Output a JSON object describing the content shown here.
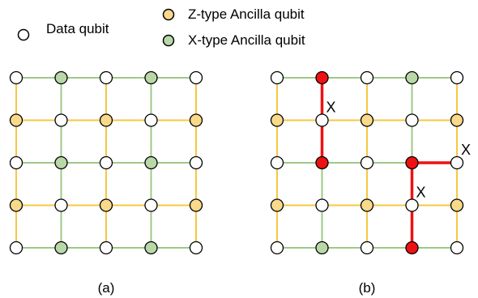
{
  "legend": {
    "data_label": "Data qubit",
    "z_label": "Z-type Ancilla qubit",
    "x_label": "X-type Ancilla qubit"
  },
  "colors": {
    "data_fill": "#ffffff",
    "z_fill": "#f9d98a",
    "x_fill": "#b8d8a8",
    "z_edge": "#f5c842",
    "x_edge": "#9cc987",
    "error": "#ee1111",
    "outline": "#000000"
  },
  "panels": [
    {
      "caption": "(a)",
      "grid": [
        [
          "D",
          "X",
          "D",
          "X",
          "D"
        ],
        [
          "Z",
          "D",
          "Z",
          "D",
          "Z"
        ],
        [
          "D",
          "X",
          "D",
          "X",
          "D"
        ],
        [
          "Z",
          "D",
          "Z",
          "D",
          "Z"
        ],
        [
          "D",
          "X",
          "D",
          "X",
          "D"
        ]
      ],
      "error_nodes": [],
      "error_edges": [],
      "error_marks": []
    },
    {
      "caption": "(b)",
      "grid": [
        [
          "D",
          "X",
          "D",
          "X",
          "D"
        ],
        [
          "Z",
          "D",
          "Z",
          "D",
          "Z"
        ],
        [
          "D",
          "X",
          "D",
          "X",
          "D"
        ],
        [
          "Z",
          "D",
          "Z",
          "D",
          "Z"
        ],
        [
          "D",
          "X",
          "D",
          "X",
          "D"
        ]
      ],
      "error_nodes": [
        [
          0,
          1
        ],
        [
          2,
          1
        ],
        [
          2,
          3
        ],
        [
          4,
          3
        ]
      ],
      "error_edges": [
        [
          [
            0,
            1
          ],
          [
            1,
            1
          ]
        ],
        [
          [
            1,
            1
          ],
          [
            2,
            1
          ]
        ],
        [
          [
            2,
            3
          ],
          [
            2,
            4
          ]
        ],
        [
          [
            2,
            3
          ],
          [
            3,
            3
          ]
        ],
        [
          [
            3,
            3
          ],
          [
            4,
            3
          ]
        ]
      ],
      "error_marks": [
        {
          "row": 1,
          "col": 1,
          "label": "X"
        },
        {
          "row": 2,
          "col": 4,
          "label": "X"
        },
        {
          "row": 3,
          "col": 3,
          "label": "X"
        }
      ]
    }
  ]
}
